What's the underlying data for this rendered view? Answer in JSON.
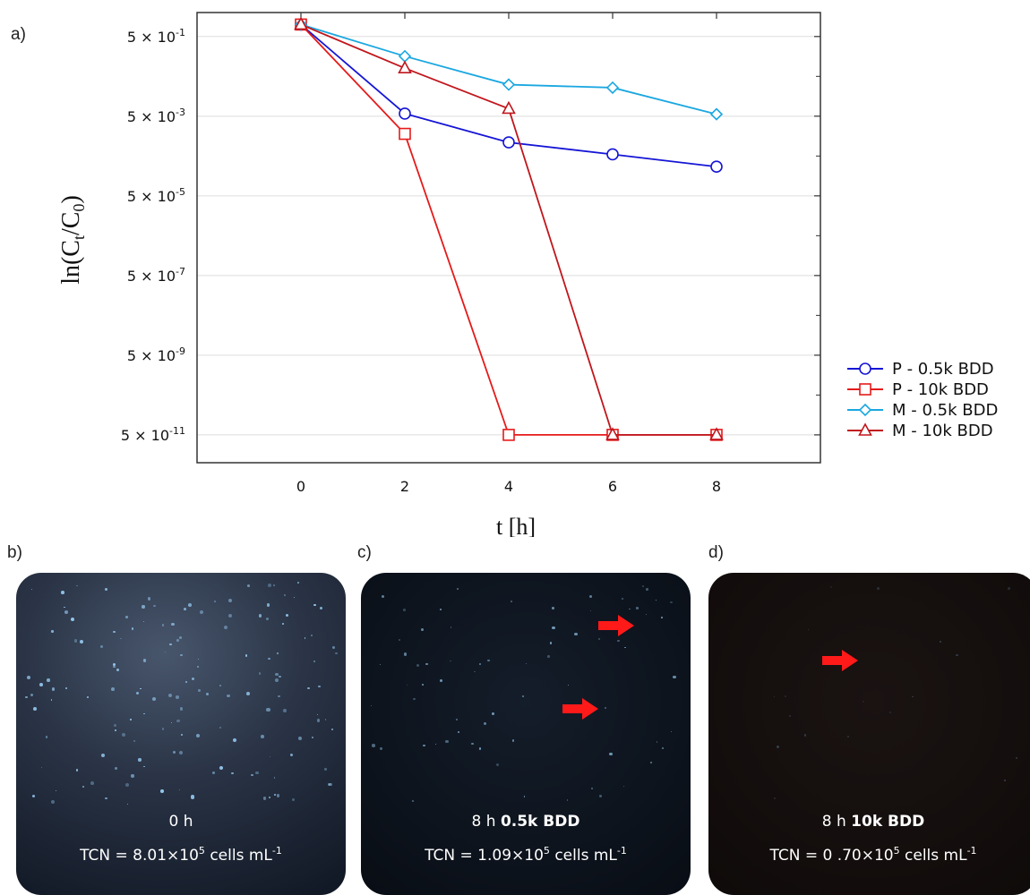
{
  "figure": {
    "panel_a": "a)",
    "panel_b": "b)",
    "panel_c": "c)",
    "panel_d": "d)"
  },
  "chart_data": {
    "type": "line",
    "title": "",
    "xlabel": "t [h]",
    "ylabel_main": "ln(C",
    "ylabel_sub1": "t",
    "ylabel_mid": "/C",
    "ylabel_sub2": "0",
    "ylabel_end": ")",
    "y_scale": "log",
    "xlim": [
      -2,
      10
    ],
    "ylim": [
      1e-11,
      2.0
    ],
    "x_ticks": [
      0,
      2,
      4,
      6,
      8
    ],
    "y_ticks": [
      {
        "value": 0.5,
        "mantissa": "5 × 10",
        "exp": "-1"
      },
      {
        "value": 0.005,
        "mantissa": "5 × 10",
        "exp": "-3"
      },
      {
        "value": 5e-05,
        "mantissa": "5 × 10",
        "exp": "-5"
      },
      {
        "value": 5e-07,
        "mantissa": "5 × 10",
        "exp": "-7"
      },
      {
        "value": 5e-09,
        "mantissa": "5 × 10",
        "exp": "-9"
      },
      {
        "value": 5e-11,
        "mantissa": "5 × 10",
        "exp": "-11"
      }
    ],
    "grid": "horizontal",
    "legend_position": "right",
    "x": [
      0,
      2,
      4,
      6,
      8
    ],
    "series": [
      {
        "name": "P - 0.5k BDD",
        "color": "#1515d6",
        "marker": "circle",
        "values": [
          1.0,
          0.0058,
          0.0011,
          0.00055,
          0.00027
        ]
      },
      {
        "name": "P - 10k BDD",
        "color": "#e51a1a",
        "marker": "square",
        "values": [
          1.0,
          0.0018,
          5e-11,
          5e-11,
          5e-11
        ]
      },
      {
        "name": "M - 0.5k BDD",
        "color": "#1aa7e0",
        "marker": "diamond",
        "values": [
          1.0,
          0.16,
          0.031,
          0.026,
          0.0056
        ]
      },
      {
        "name": "M - 10k BDD",
        "color": "#c0161c",
        "marker": "triangle",
        "values": [
          1.0,
          0.08,
          0.0077,
          5e-11,
          5e-11
        ]
      }
    ]
  },
  "photos": {
    "b": {
      "line1": "0 h",
      "tcn_prefix": "TCN = 8.01×10",
      "tcn_exp": "5",
      "tcn_unit": " cells mL",
      "tcn_unit_exp": "-1"
    },
    "c": {
      "line1_pre": "8 h ",
      "line1_bold": "0.5k BDD",
      "tcn_prefix": "TCN = 1.09×10",
      "tcn_exp": "5",
      "tcn_unit": " cells mL",
      "tcn_unit_exp": "-1"
    },
    "d": {
      "line1_pre": "8 h ",
      "line1_bold": "10k BDD",
      "tcn_prefix": "TCN = 0 .70×10",
      "tcn_exp": "5",
      "tcn_unit": " cells mL",
      "tcn_unit_exp": "-1"
    },
    "arrow_color": "#ff1a1a"
  }
}
